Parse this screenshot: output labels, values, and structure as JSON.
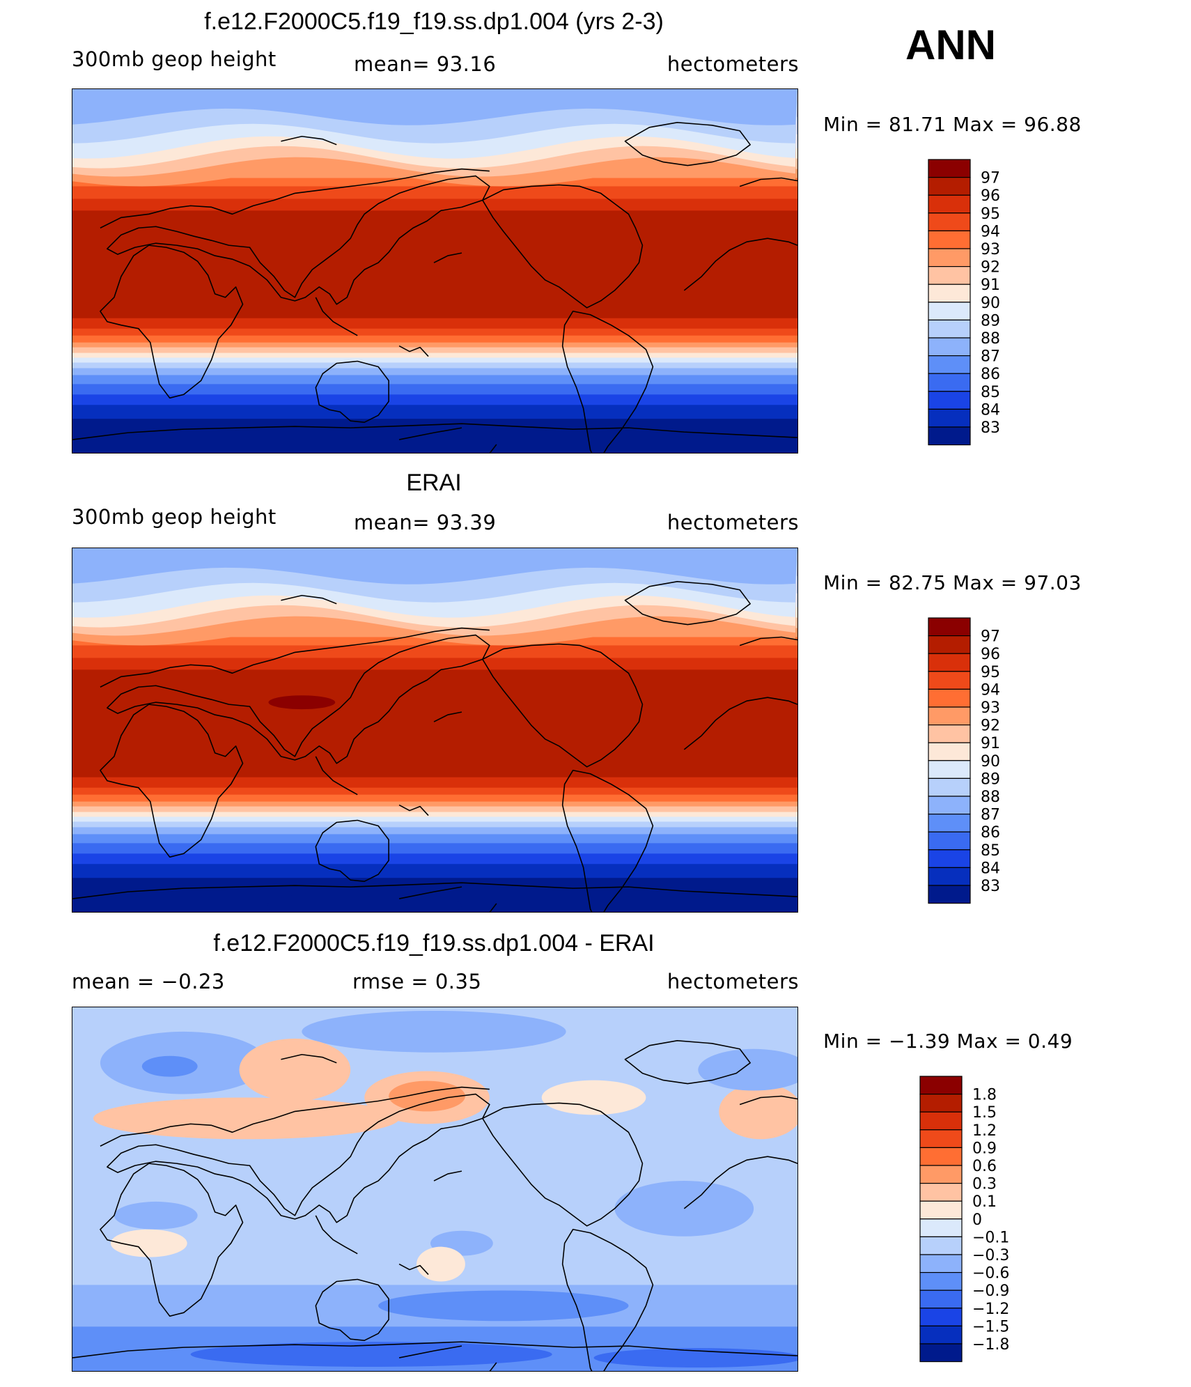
{
  "season": "ANN",
  "panels": [
    {
      "id": "model",
      "title": "f.e12.F2000C5.f19_f19.ss.dp1.004 (yrs 2-3)",
      "left_text": "300mb geop height",
      "center_text": "mean=  93.16",
      "right_text": "hectometers",
      "minmax": "Min =  81.71 Max =  96.88",
      "field": "abs",
      "colorbar_labels": [
        "97",
        "96",
        "95",
        "94",
        "93",
        "92",
        "91",
        "90",
        "89",
        "88",
        "87",
        "86",
        "85",
        "84",
        "83"
      ],
      "colorbar_colors": [
        "#8b0000",
        "#b41d00",
        "#d9300a",
        "#ef4a1a",
        "#ff6e33",
        "#ff9a66",
        "#ffc3a3",
        "#fde8d8",
        "#dbe9fb",
        "#b7d0fb",
        "#8db2fb",
        "#5e8ff8",
        "#3a6bf1",
        "#1a44e6",
        "#062fbe",
        "#001a8c"
      ]
    },
    {
      "id": "obs",
      "title": "ERAI",
      "left_text": "300mb geop height",
      "center_text": "mean=  93.39",
      "right_text": "hectometers",
      "minmax": "Min =  82.75 Max =  97.03",
      "field": "abs",
      "colorbar_labels": [
        "97",
        "96",
        "95",
        "94",
        "93",
        "92",
        "91",
        "90",
        "89",
        "88",
        "87",
        "86",
        "85",
        "84",
        "83"
      ],
      "colorbar_colors": [
        "#8b0000",
        "#b41d00",
        "#d9300a",
        "#ef4a1a",
        "#ff6e33",
        "#ff9a66",
        "#ffc3a3",
        "#fde8d8",
        "#dbe9fb",
        "#b7d0fb",
        "#8db2fb",
        "#5e8ff8",
        "#3a6bf1",
        "#1a44e6",
        "#062fbe",
        "#001a8c"
      ]
    },
    {
      "id": "diff",
      "title": "f.e12.F2000C5.f19_f19.ss.dp1.004 - ERAI",
      "left_text": "mean =   −0.23",
      "center_text": "rmse =    0.35",
      "right_text": "hectometers",
      "minmax": "Min =  −1.39 Max =    0.49",
      "field": "diff",
      "colorbar_labels": [
        "1.8",
        "1.5",
        "1.2",
        "0.9",
        "0.6",
        "0.3",
        "0.1",
        "0",
        "−0.1",
        "−0.3",
        "−0.6",
        "−0.9",
        "−1.2",
        "−1.5",
        "−1.8"
      ],
      "colorbar_colors": [
        "#8b0000",
        "#b41d00",
        "#d9300a",
        "#ef4a1a",
        "#ff6e33",
        "#ff9a66",
        "#ffc3a3",
        "#fde8d8",
        "#dbe9fb",
        "#b7d0fb",
        "#8db2fb",
        "#5e8ff8",
        "#3a6bf1",
        "#1a44e6",
        "#062fbe",
        "#001a8c"
      ]
    }
  ]
}
